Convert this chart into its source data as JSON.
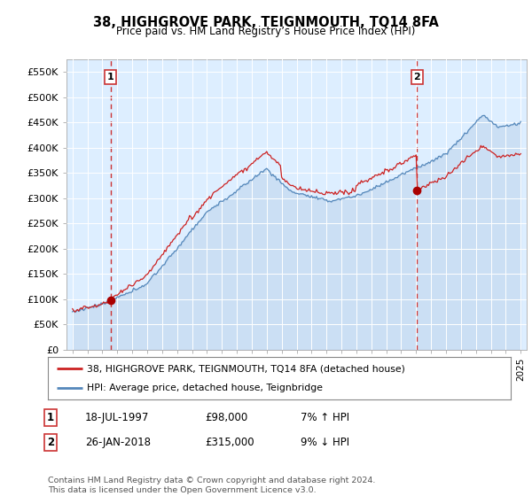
{
  "title": "38, HIGHGROVE PARK, TEIGNMOUTH, TQ14 8FA",
  "subtitle": "Price paid vs. HM Land Registry’s House Price Index (HPI)",
  "ylabel_ticks": [
    "£0",
    "£50K",
    "£100K",
    "£150K",
    "£200K",
    "£250K",
    "£300K",
    "£350K",
    "£400K",
    "£450K",
    "£500K",
    "£550K"
  ],
  "ytick_values": [
    0,
    50000,
    100000,
    150000,
    200000,
    250000,
    300000,
    350000,
    400000,
    450000,
    500000,
    550000
  ],
  "ylim": [
    0,
    575000
  ],
  "sale1_date": 1997.55,
  "sale1_price": 98000,
  "sale1_label": "1",
  "sale2_date": 2018.07,
  "sale2_price": 315000,
  "sale2_label": "2",
  "hpi_color": "#5588bb",
  "hpi_fill_color": "#aac4e0",
  "price_color": "#cc2222",
  "marker_color": "#aa0000",
  "vline_color": "#cc3333",
  "background_color": "#ddeeff",
  "plot_bg_color": "#ddeeff",
  "legend_entry1": "38, HIGHGROVE PARK, TEIGNMOUTH, TQ14 8FA (detached house)",
  "legend_entry2": "HPI: Average price, detached house, Teignbridge",
  "table_row1": [
    "1",
    "18-JUL-1997",
    "£98,000",
    "7% ↑ HPI"
  ],
  "table_row2": [
    "2",
    "26-JAN-2018",
    "£315,000",
    "9% ↓ HPI"
  ],
  "footer": "Contains HM Land Registry data © Crown copyright and database right 2024.\nThis data is licensed under the Open Government Licence v3.0.",
  "xmin": 1994.6,
  "xmax": 2025.4,
  "seed": 12345
}
